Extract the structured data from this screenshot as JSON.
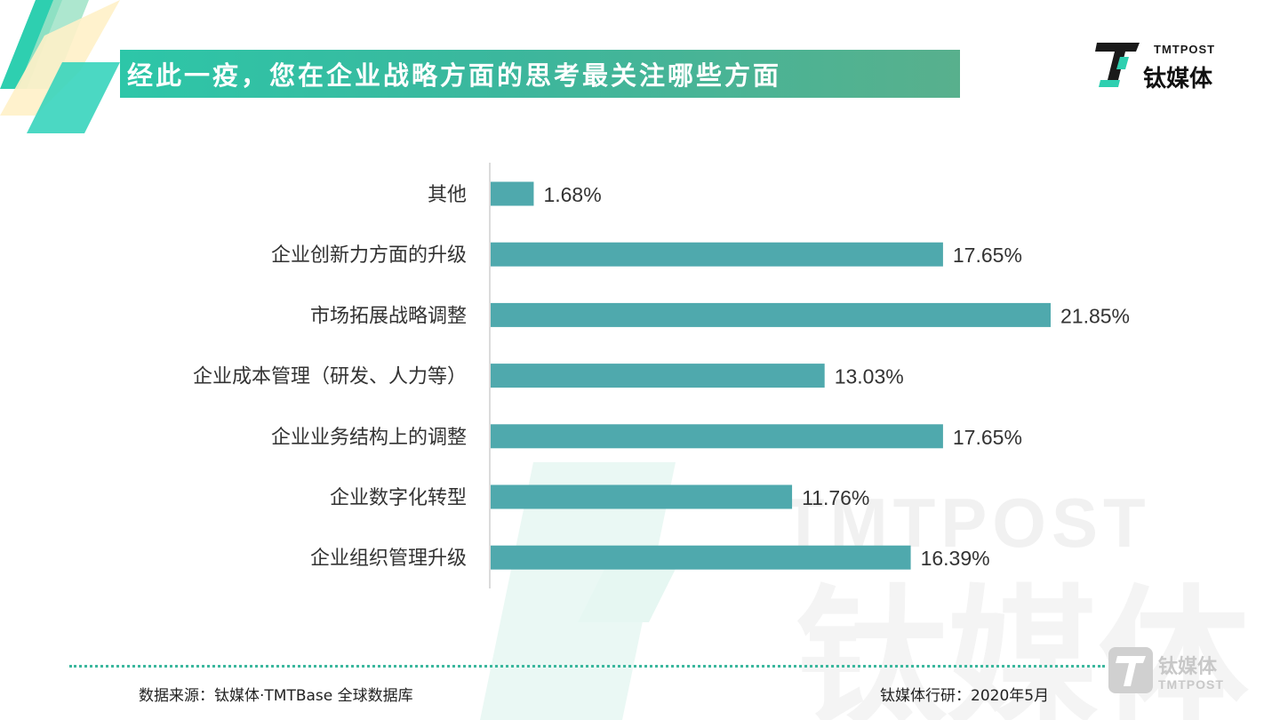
{
  "header": {
    "title": "经此一疫，您在企业战略方面的思考最关注哪些方面"
  },
  "brand": {
    "en": "TMTPOST",
    "cn": "钛媒体"
  },
  "watermark": {
    "en": "TMTPOST",
    "cn": "钛媒体"
  },
  "chart_data": {
    "type": "bar",
    "orientation": "horizontal",
    "categories": [
      "其他",
      "企业创新力方面的升级",
      "市场拓展战略调整",
      "企业成本管理（研发、人力等）",
      "企业业务结构上的调整",
      "企业数字化转型",
      "企业组织管理升级"
    ],
    "values": [
      1.68,
      17.65,
      21.85,
      13.03,
      17.65,
      11.76,
      16.39
    ],
    "value_labels": [
      "1.68%",
      "17.65%",
      "21.85%",
      "13.03%",
      "17.65%",
      "11.76%",
      "16.39%"
    ],
    "unit": "%",
    "xlim": [
      0,
      21.85
    ],
    "grid": false,
    "legend": "none",
    "bar_color": "#4fa9ad"
  },
  "footer": {
    "source": "数据来源：钛媒体·TMTBase 全球数据库",
    "credit": "钛媒体行研：2020年5月"
  },
  "colors": {
    "title_bar": "#3bb79d",
    "dots": "#3bb79d",
    "bar": "#4fa9ad"
  }
}
